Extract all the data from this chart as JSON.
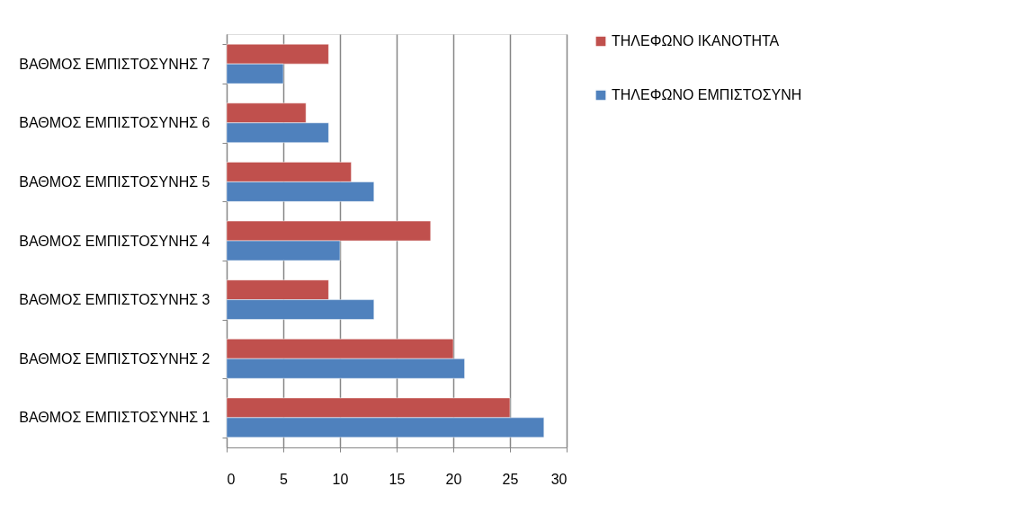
{
  "chart_data": {
    "type": "bar",
    "orientation": "horizontal",
    "categories": [
      "ΒΑΘΜΟΣ ΕΜΠΙΣΤΟΣΥΝΗΣ 7",
      "ΒΑΘΜΟΣ ΕΜΠΙΣΤΟΣΥΝΗΣ 6",
      "ΒΑΘΜΟΣ ΕΜΠΙΣΤΟΣΥΝΗΣ 5",
      "ΒΑΘΜΟΣ ΕΜΠΙΣΤΟΣΥΝΗΣ 4",
      "ΒΑΘΜΟΣ ΕΜΠΙΣΤΟΣΥΝΗΣ 3",
      "ΒΑΘΜΟΣ ΕΜΠΙΣΤΟΣΥΝΗΣ 2",
      "ΒΑΘΜΟΣ ΕΜΠΙΣΤΟΣΥΝΗΣ 1"
    ],
    "series": [
      {
        "name": "ΤΗΛΕΦΩΝΟ ΙΚΑΝΟΤΗΤΑ",
        "color": "#c0504d",
        "values": [
          9,
          7,
          11,
          18,
          9,
          20,
          25
        ]
      },
      {
        "name": "ΤΗΛΕΦΩΝΟ ΕΜΠΙΣΤΟΣΥΝΗ",
        "color": "#4f81bd",
        "values": [
          5,
          9,
          13,
          10,
          13,
          21,
          28
        ]
      }
    ],
    "xlim": [
      0,
      30
    ],
    "xticks": [
      0,
      5,
      10,
      15,
      20,
      25,
      30
    ],
    "grid": "x",
    "legend": "right"
  }
}
